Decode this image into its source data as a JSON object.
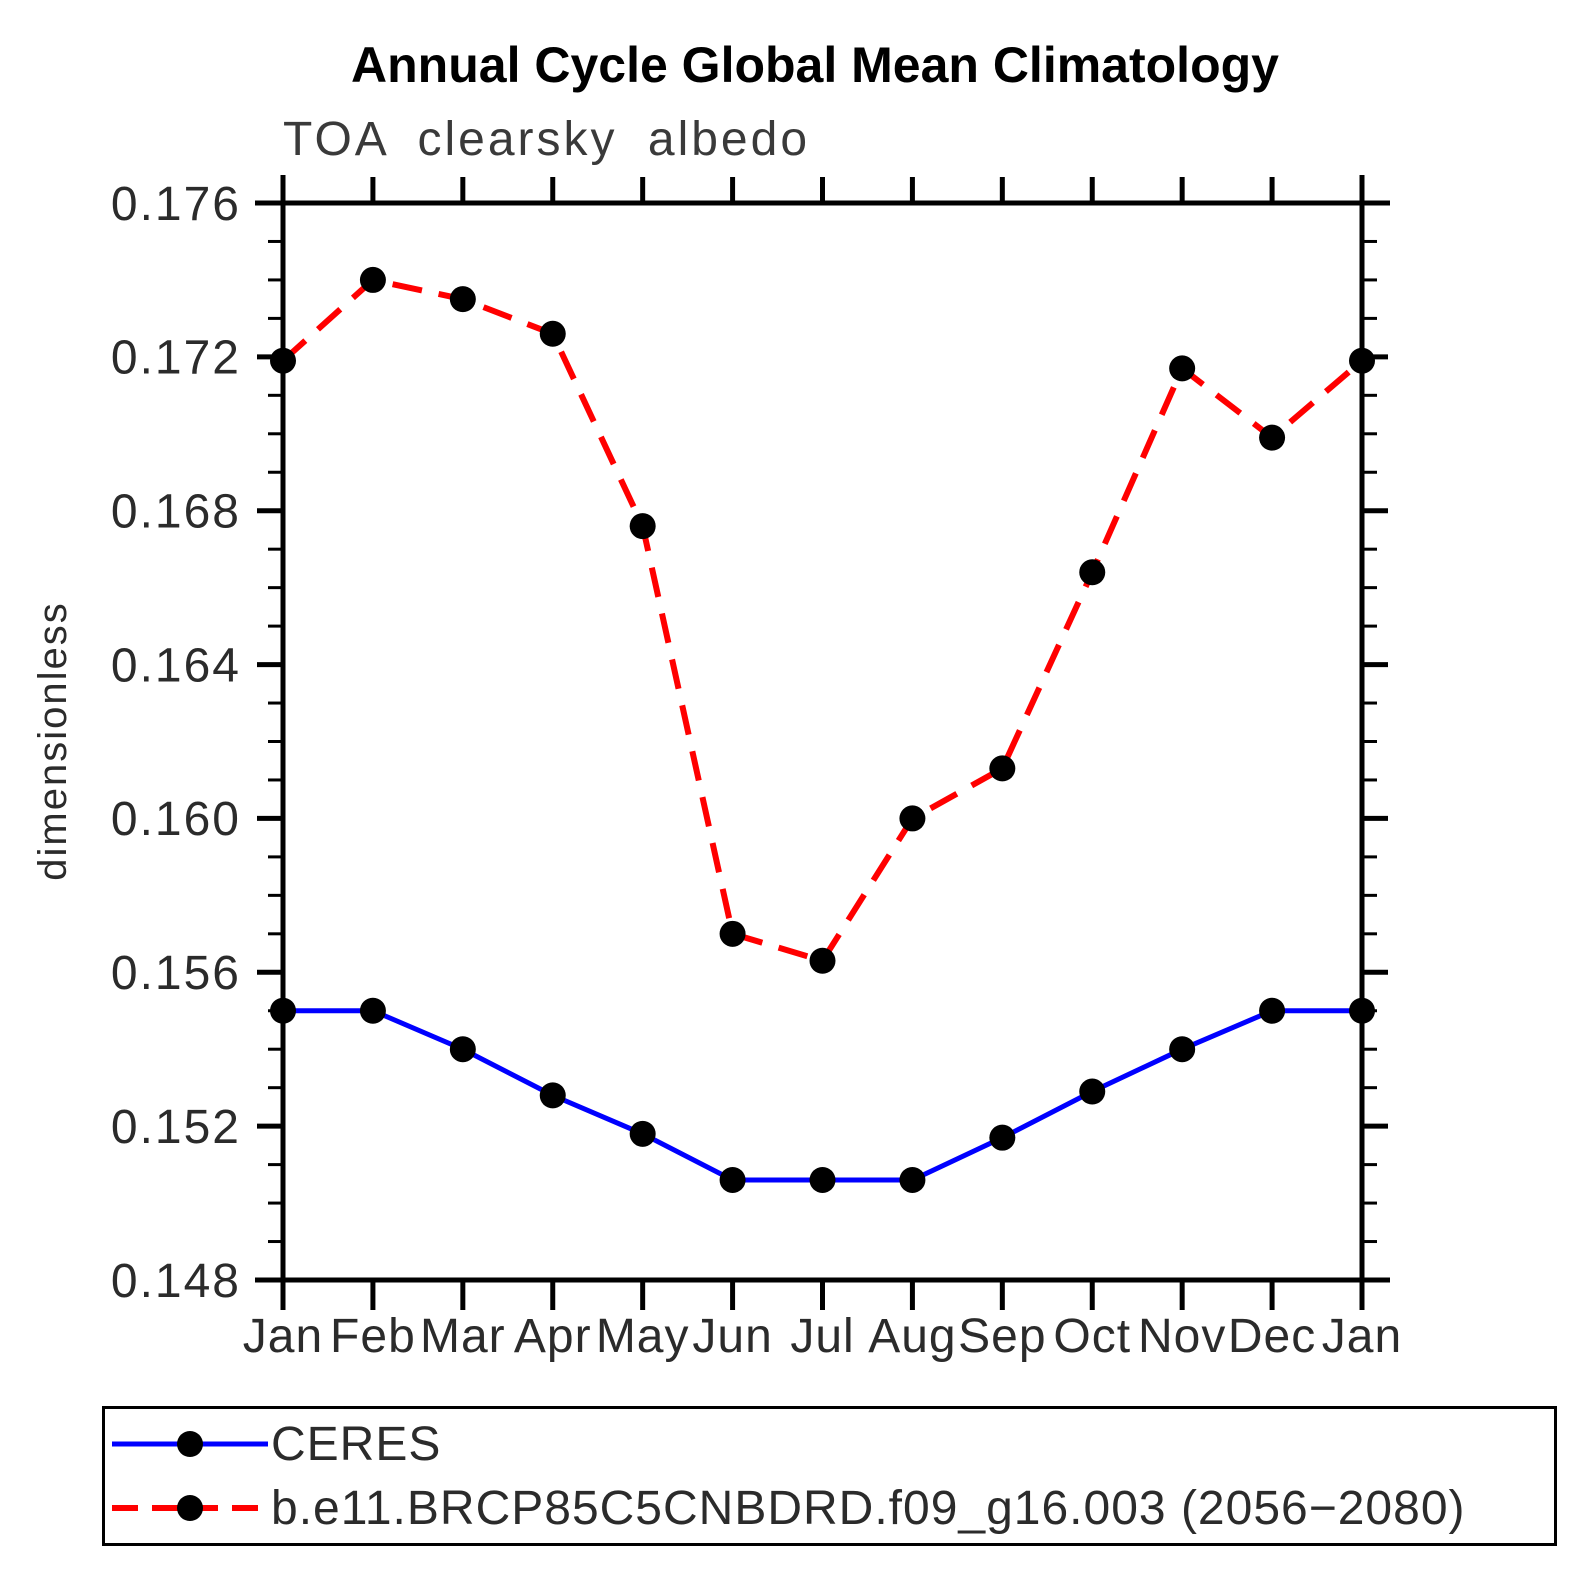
{
  "header": {
    "title": "Annual Cycle Global Mean Climatology",
    "subtitle": "TOA clearsky albedo"
  },
  "chart_data": {
    "type": "line",
    "title": "Annual Cycle Global Mean Climatology",
    "subtitle": "TOA clearsky albedo",
    "xlabel": "",
    "ylabel": "dimensionless",
    "x_tick_labels": [
      "Jan",
      "Feb",
      "Mar",
      "Apr",
      "May",
      "Jun",
      "Jul",
      "Aug",
      "Sep",
      "Oct",
      "Nov",
      "Dec",
      "Jan"
    ],
    "ylim": [
      0.148,
      0.176
    ],
    "y_major_step": 0.004,
    "y_minor_step": 0.001,
    "y_tick_labels": [
      "0.148",
      "0.152",
      "0.156",
      "0.160",
      "0.164",
      "0.168",
      "0.172",
      "0.176"
    ],
    "grid": false,
    "legend_position": "bottom",
    "frame_color": "#000000",
    "marker_color": "#000000",
    "series": [
      {
        "name": "CERES",
        "color": "#0000ff",
        "style": "solid",
        "marker": "circle",
        "values": [
          0.155,
          0.155,
          0.154,
          0.1528,
          0.1518,
          0.1506,
          0.1506,
          0.1506,
          0.1517,
          0.1529,
          0.154,
          0.155,
          0.155
        ]
      },
      {
        "name": "b.e11.BRCP85C5CNBDRD.f09_g16.003 (2056−2080)",
        "color": "#ff0000",
        "style": "dashed",
        "marker": "circle",
        "values": [
          0.1719,
          0.174,
          0.1735,
          0.1726,
          0.1676,
          0.157,
          0.1563,
          0.16,
          0.1613,
          0.1664,
          0.1717,
          0.1699,
          0.1719
        ]
      }
    ]
  }
}
